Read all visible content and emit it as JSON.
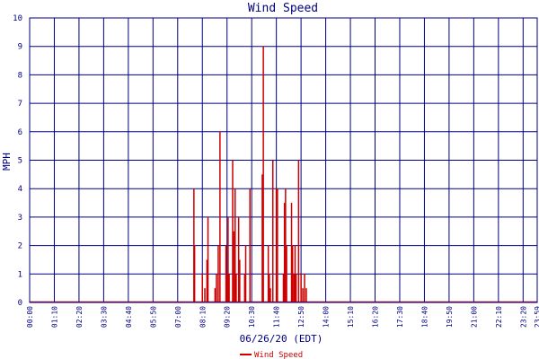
{
  "chart_data": {
    "type": "bar",
    "title": "Wind Speed",
    "xlabel": "06/26/20 (EDT)",
    "ylabel": "MPH",
    "ylim": [
      0,
      10
    ],
    "yticks": [
      "0",
      "1",
      "2",
      "3",
      "4",
      "5",
      "6",
      "7",
      "8",
      "9",
      "10"
    ],
    "xlim": [
      "00:00",
      "24:00"
    ],
    "xticks": [
      "00:00",
      "01:10",
      "02:20",
      "03:30",
      "04:40",
      "05:50",
      "07:00",
      "08:10",
      "09:20",
      "10:30",
      "11:40",
      "12:50",
      "14:00",
      "15:10",
      "16:20",
      "17:30",
      "18:40",
      "19:50",
      "21:00",
      "22:10",
      "23:20",
      "23:59"
    ],
    "grid": true,
    "legend_position": "bottom-center",
    "series": [
      {
        "name": "Wind Speed",
        "color": "#cc0000",
        "x": [
          "07:46",
          "07:48",
          "08:10",
          "08:17",
          "08:23",
          "08:26",
          "08:46",
          "08:50",
          "08:55",
          "09:00",
          "09:17",
          "09:20",
          "09:23",
          "09:26",
          "09:36",
          "09:39",
          "09:43",
          "09:46",
          "09:53",
          "09:56",
          "10:10",
          "10:13",
          "10:25",
          "11:00",
          "11:03",
          "11:17",
          "11:20",
          "11:23",
          "11:30",
          "11:40",
          "11:43",
          "12:00",
          "12:03",
          "12:06",
          "12:09",
          "12:23",
          "12:26",
          "12:30",
          "12:33",
          "12:36",
          "12:43",
          "12:50",
          "12:55",
          "13:00",
          "13:05"
        ],
        "values": [
          4,
          2,
          1,
          0.5,
          1.5,
          3,
          0.5,
          1,
          2,
          6,
          2,
          1,
          3,
          1,
          5,
          2.5,
          4,
          1,
          3,
          1.5,
          1,
          2,
          4,
          4.5,
          9,
          2,
          1,
          0.5,
          5,
          4,
          4,
          1,
          3.5,
          4,
          2,
          3.5,
          2,
          1,
          2,
          1,
          5,
          1,
          0.5,
          1,
          0.5
        ]
      }
    ]
  }
}
